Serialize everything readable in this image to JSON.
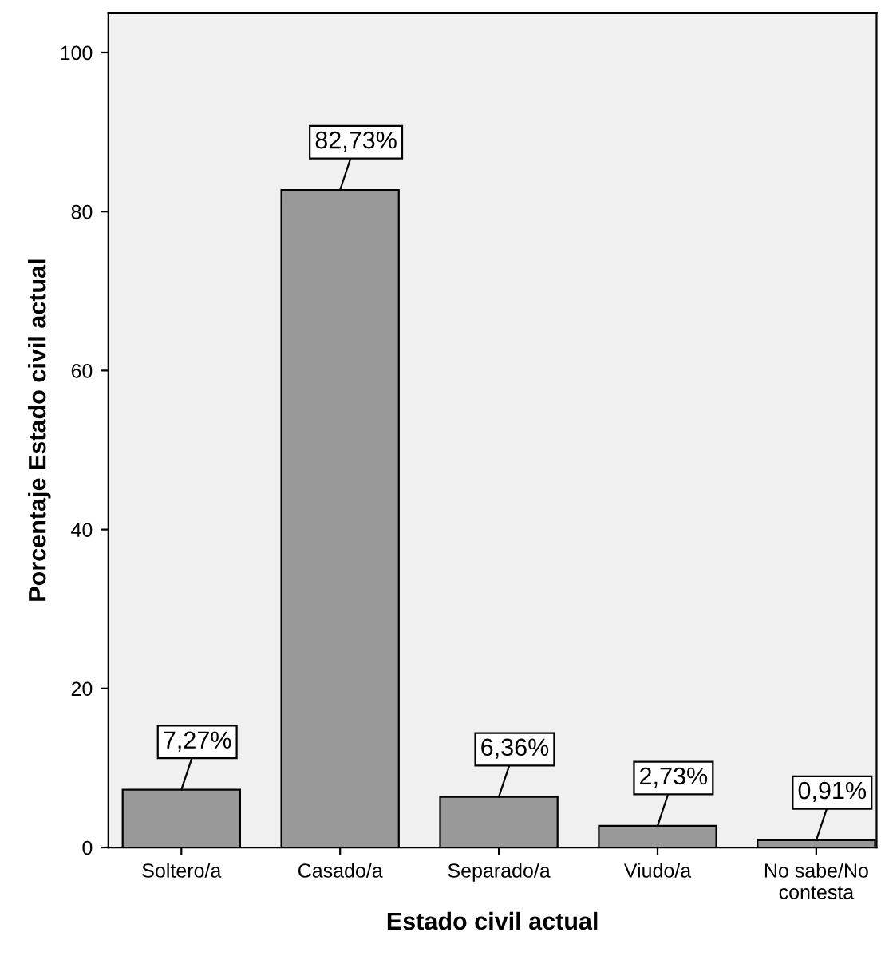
{
  "chart_data": {
    "type": "bar",
    "xlabel": "Estado civil actual",
    "ylabel": "Porcentaje Estado civil actual",
    "categories": [
      "Soltero/a",
      "Casado/a",
      "Separado/a",
      "Viudo/a",
      "No sabe/No\ncontesta"
    ],
    "values": [
      7.27,
      82.73,
      6.36,
      2.73,
      0.91
    ],
    "value_labels": [
      "7,27%",
      "82,73%",
      "6,36%",
      "2,73%",
      "0,91%"
    ],
    "color": "#999999",
    "ylim": [
      0,
      105
    ],
    "yticks": [
      0,
      20,
      40,
      60,
      80,
      100
    ],
    "grid": false
  }
}
